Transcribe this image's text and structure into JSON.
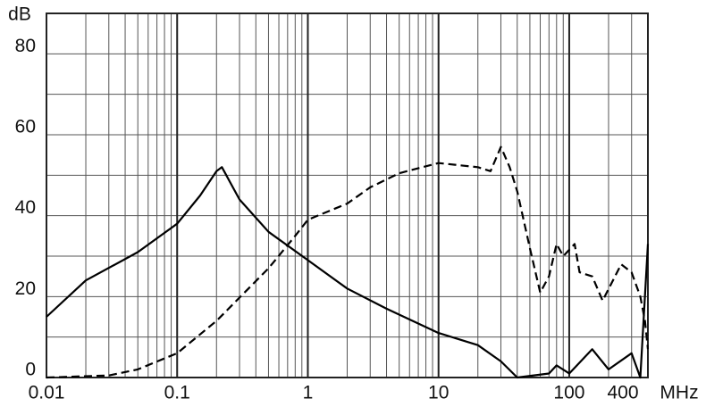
{
  "chart_data": {
    "type": "line",
    "x_label": "MHz",
    "y_label": "dB",
    "xscale": "log",
    "xlim": [
      0.01,
      400
    ],
    "xticks": [
      0.01,
      0.1,
      1,
      10,
      100,
      400
    ],
    "ylim": [
      0,
      90
    ],
    "yticks": [
      0,
      20,
      40,
      60,
      80
    ],
    "y_minor_ticks": [
      10,
      30,
      50,
      70,
      90
    ],
    "grid": true,
    "x_minor_grid": true,
    "series": [
      {
        "color": "#000000",
        "style": "solid",
        "x": [
          0.01,
          0.02,
          0.05,
          0.1,
          0.15,
          0.2,
          0.22,
          0.3,
          0.5,
          1,
          2,
          4,
          10,
          20,
          30,
          40,
          70,
          80,
          100,
          150,
          200,
          300,
          350,
          400
        ],
        "values": [
          15,
          24,
          31,
          38,
          45,
          51,
          52,
          44,
          36,
          29,
          22,
          17,
          11,
          8,
          4,
          0,
          1,
          3,
          1,
          7,
          2,
          6,
          0,
          33
        ]
      },
      {
        "color": "#000000",
        "style": "dashed",
        "x": [
          0.01,
          0.03,
          0.05,
          0.1,
          0.2,
          0.5,
          0.8,
          1,
          2,
          3,
          5,
          10,
          20,
          25,
          30,
          35,
          40,
          50,
          60,
          70,
          80,
          90,
          110,
          120,
          150,
          180,
          250,
          300,
          350,
          380,
          400
        ],
        "values": [
          0,
          0.5,
          2,
          6,
          14,
          27,
          35,
          39,
          43,
          47,
          50.5,
          53,
          52,
          51,
          57,
          52,
          46,
          32,
          21,
          25,
          33,
          30,
          33,
          26,
          25,
          19,
          28,
          26,
          20,
          14,
          7
        ]
      }
    ]
  }
}
